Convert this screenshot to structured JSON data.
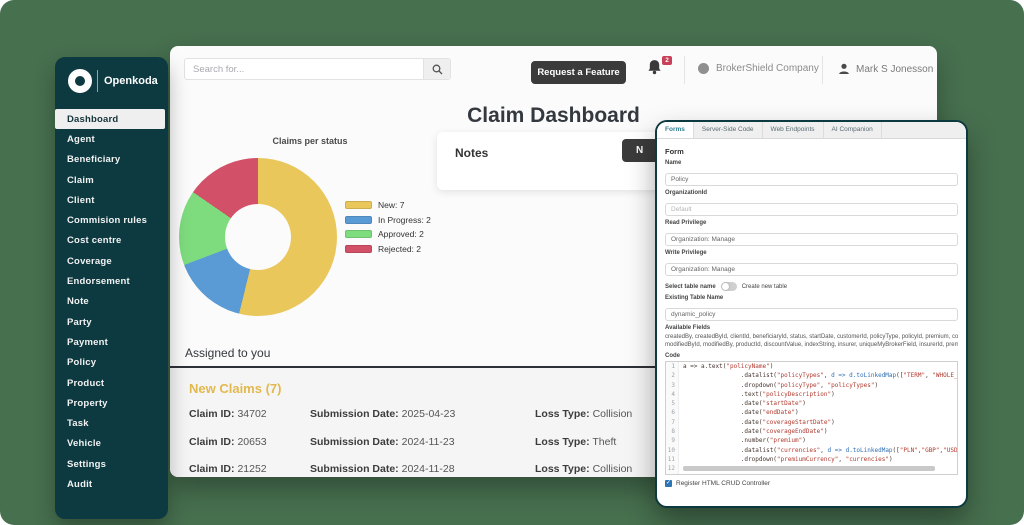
{
  "colors": {
    "background": "#47704F",
    "sidebar": "#0C3A40",
    "button_dark": "#3B3B3B",
    "badge": "#C9405A",
    "new_claims_heading": "#E2B94F",
    "tab_active_text": "#2E8091"
  },
  "sidebar": {
    "logo_text": "Openkoda",
    "items": [
      {
        "label": "Dashboard",
        "active": true
      },
      {
        "label": "Agent"
      },
      {
        "label": "Beneficiary"
      },
      {
        "label": "Claim"
      },
      {
        "label": "Client"
      },
      {
        "label": "Commision rules"
      },
      {
        "label": "Cost centre"
      },
      {
        "label": "Coverage"
      },
      {
        "label": "Endorsement"
      },
      {
        "label": "Note"
      },
      {
        "label": "Party"
      },
      {
        "label": "Payment"
      },
      {
        "label": "Policy"
      },
      {
        "label": "Product"
      },
      {
        "label": "Property"
      },
      {
        "label": "Task"
      },
      {
        "label": "Vehicle"
      },
      {
        "label": "Settings"
      },
      {
        "label": "Audit"
      }
    ]
  },
  "topbar": {
    "search_placeholder": "Search for...",
    "request_feature_label": "Request a Feature",
    "notification_count": "2",
    "company_name": "BrokerShield Company",
    "user_name": "Mark S Jonesson"
  },
  "main": {
    "title": "Claim Dashboard",
    "notes": {
      "title": "Notes",
      "button_label": "N"
    },
    "assigned_heading": "Assigned to you",
    "new_claims": {
      "heading": "New Claims (7)",
      "rows": [
        {
          "id_label": "Claim ID:",
          "id": "34702",
          "date_label": "Submission Date:",
          "date": "2025-04-23",
          "loss_label": "Loss Type:",
          "loss": "Collision"
        },
        {
          "id_label": "Claim ID:",
          "id": "20653",
          "date_label": "Submission Date:",
          "date": "2024-11-23",
          "loss_label": "Loss Type:",
          "loss": "Theft"
        },
        {
          "id_label": "Claim ID:",
          "id": "21252",
          "date_label": "Submission Date:",
          "date": "2024-11-28",
          "loss_label": "Loss Type:",
          "loss": "Collision"
        }
      ]
    }
  },
  "chart_data": {
    "type": "pie",
    "donut": true,
    "title": "Claims per status",
    "legend_position": "right",
    "series": [
      {
        "name": "New",
        "value": 7,
        "color": "#E9C75B"
      },
      {
        "name": "In Progress",
        "value": 2,
        "color": "#5B9BD5"
      },
      {
        "name": "Approved",
        "value": 2,
        "color": "#7EDC7E"
      },
      {
        "name": "Rejected",
        "value": 2,
        "color": "#D25168"
      }
    ]
  },
  "panel": {
    "tabs": [
      {
        "label": "Forms",
        "active": true
      },
      {
        "label": "Server-Side Code"
      },
      {
        "label": "Web Endpoints"
      },
      {
        "label": "AI Companion"
      }
    ],
    "form_heading": "Form",
    "fields": [
      {
        "label": "Name",
        "value": "Policy"
      },
      {
        "label": "OrganizationId",
        "value": "Default",
        "disabled": true
      },
      {
        "label": "Read Privilege",
        "value": "Organization: Manage"
      },
      {
        "label": "Write Privilege",
        "value": "Organization: Manage"
      }
    ],
    "toggle": {
      "label": "Select table name",
      "right_label": "Create new table"
    },
    "existing_table": {
      "label": "Existing Table Name",
      "value": "dynamic_policy"
    },
    "available_fields": {
      "label": "Available Fields",
      "line1": "createdBy, createdById, clientId, beneficiaryId, status, startDate, customerId, policyType, policyId, premium, cove",
      "line2": "modifiedById, modifiedBy, productId, discountValue, indexString, insurer, uniqueMyBrokerField, insurerId, premi"
    },
    "code": {
      "label": "Code",
      "lines": [
        "a => a.text(\"policyName\")",
        "                .datalist(\"policyTypes\", d => d.toLinkedMap([\"TERM\", \"WHOLE_LIFE\"",
        "                .dropdown(\"policyType\", \"policyTypes\")",
        "                .text(\"policyDescription\")",
        "                .date(\"startDate\")",
        "                .date(\"endDate\")",
        "                .date(\"coverageStartDate\")",
        "                .date(\"coverageEndDate\")",
        "                .number(\"premium\")",
        "                .datalist(\"currencies\", d => d.toLinkedMap([\"PLN\",\"GBP\",\"USD\",\"EU",
        "                .dropdown(\"premiumCurrency\", \"currencies\")",
        ""
      ]
    },
    "checkbox_label": "Register HTML CRUD Controller"
  }
}
